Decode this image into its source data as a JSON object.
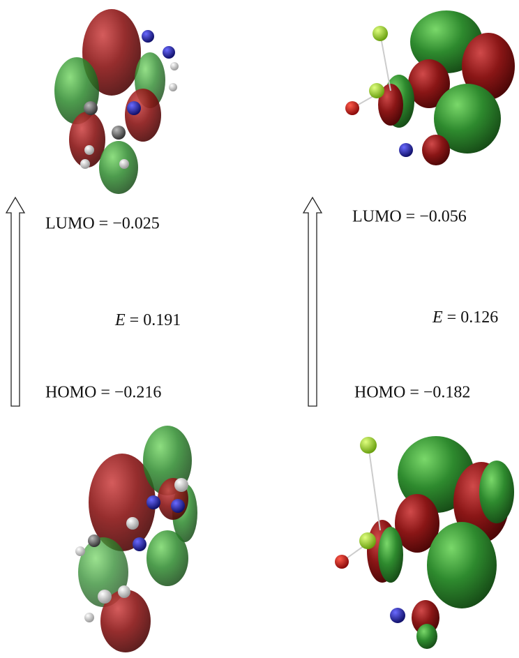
{
  "panels": [
    {
      "lumo": "LUMO = −0.025",
      "gap": {
        "symbol": "E",
        "text": "= 0.191"
      },
      "homo": "HOMO = −0.216"
    },
    {
      "lumo": "LUMO = −0.056",
      "gap": {
        "symbol": "E",
        "text": "= 0.126"
      },
      "homo": "HOMO = −0.182"
    }
  ]
}
